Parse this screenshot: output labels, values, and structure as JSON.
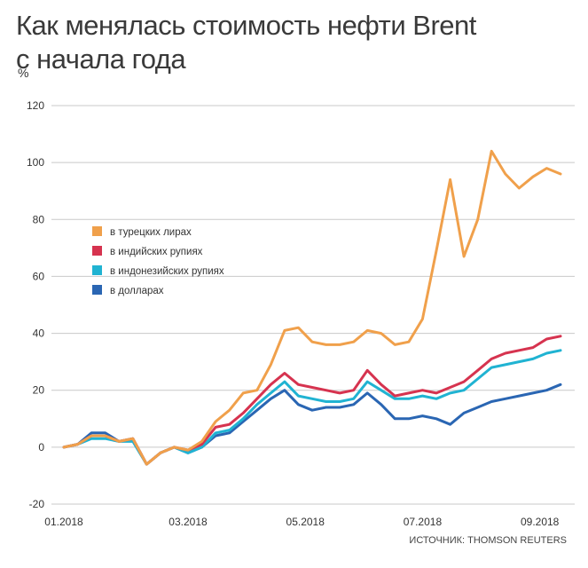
{
  "title_line1": "Как менялась стоимость нефти Brent",
  "title_line2": "с начала года",
  "unit": "%",
  "source": "ИСТОЧНИК: THOMSON REUTERS",
  "chart_data": {
    "type": "line",
    "title": "Как менялась стоимость нефти Brent с начала года",
    "ylabel": "%",
    "xlabel": "",
    "ylim": [
      -20,
      120
    ],
    "yticks": [
      -20,
      0,
      20,
      40,
      60,
      80,
      100,
      120
    ],
    "xlim": [
      0,
      36
    ],
    "xticks": [
      {
        "x": 0,
        "label": "01.2018"
      },
      {
        "x": 9,
        "label": "03.2018"
      },
      {
        "x": 17.5,
        "label": "05.2018"
      },
      {
        "x": 26,
        "label": "07.2018"
      },
      {
        "x": 34.5,
        "label": "09.2018"
      }
    ],
    "grid": true,
    "legend_position": "left",
    "x": [
      0,
      1,
      2,
      3,
      4,
      5,
      6,
      7,
      8,
      9,
      10,
      11,
      12,
      13,
      14,
      15,
      16,
      17,
      18,
      19,
      20,
      21,
      22,
      23,
      24,
      25,
      26,
      27,
      28,
      29,
      30,
      31,
      32,
      33,
      34,
      35,
      36
    ],
    "series": [
      {
        "name": "в турецких лирах",
        "color": "#f0a04b",
        "values": [
          0,
          1,
          4,
          4,
          2,
          3,
          -6,
          -2,
          0,
          -1,
          2,
          9,
          13,
          19,
          20,
          29,
          41,
          42,
          37,
          36,
          36,
          37,
          41,
          40,
          36,
          37,
          45,
          69,
          94,
          67,
          80,
          104,
          96,
          91,
          95,
          98,
          96
        ]
      },
      {
        "name": "в индийских рупиях",
        "color": "#d6334f",
        "values": [
          0,
          1,
          4,
          4,
          2,
          3,
          -6,
          -2,
          0,
          -1,
          1,
          7,
          8,
          12,
          17,
          22,
          26,
          22,
          21,
          20,
          19,
          20,
          27,
          22,
          18,
          19,
          20,
          19,
          21,
          23,
          27,
          31,
          33,
          34,
          35,
          38,
          39
        ]
      },
      {
        "name": "в индонезийских рупиях",
        "color": "#20b3d2",
        "values": [
          0,
          1,
          3,
          3,
          2,
          2,
          -6,
          -2,
          0,
          -2,
          0,
          5,
          6,
          10,
          15,
          19,
          23,
          18,
          17,
          16,
          16,
          17,
          23,
          20,
          17,
          17,
          18,
          17,
          19,
          20,
          24,
          28,
          29,
          30,
          31,
          33,
          34
        ]
      },
      {
        "name": "в долларах",
        "color": "#2a66b3",
        "values": [
          0,
          1,
          5,
          5,
          2,
          3,
          -6,
          -2,
          0,
          -2,
          0,
          4,
          5,
          9,
          13,
          17,
          20,
          15,
          13,
          14,
          14,
          15,
          19,
          15,
          10,
          10,
          11,
          10,
          8,
          12,
          14,
          16,
          17,
          18,
          19,
          20,
          22
        ]
      }
    ]
  }
}
